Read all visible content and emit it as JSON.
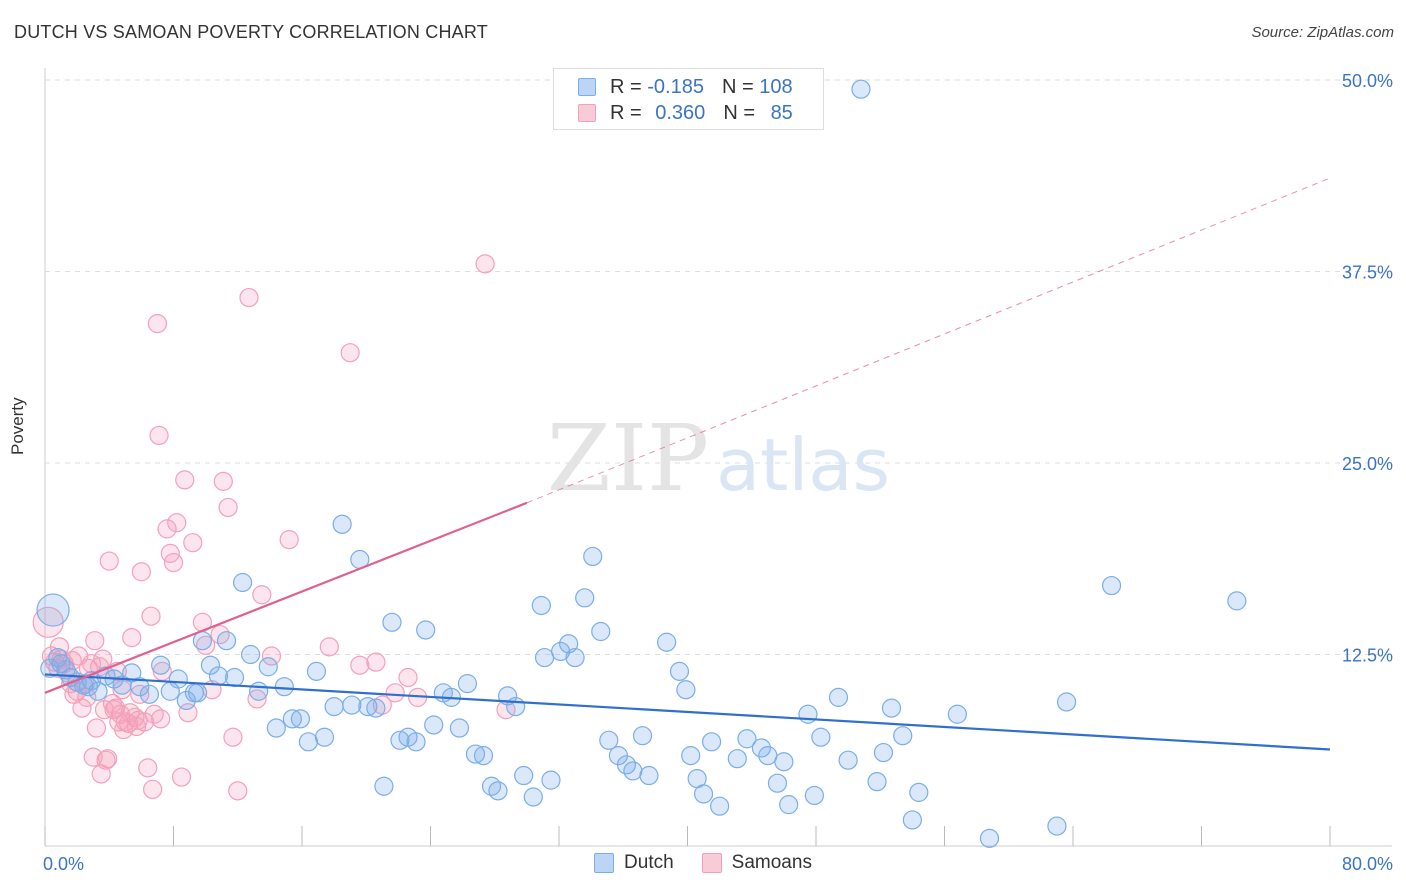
{
  "title": "DUTCH VS SAMOAN POVERTY CORRELATION CHART",
  "source": "Source: ZipAtlas.com",
  "watermark": {
    "zip": "ZIP",
    "atlas": "atlas"
  },
  "legend": {
    "rows": [
      {
        "r_label": "R =",
        "r_value": "-0.185",
        "n_label": "N =",
        "n_value": "108"
      },
      {
        "r_label": "R =",
        "r_value": "0.360",
        "n_label": "N =",
        "n_value": "85"
      }
    ]
  },
  "colors": {
    "dutch": "#7aaee8",
    "dutch_line": "#2f6fd0",
    "samoan": "#f4a0bb",
    "samoan_line": "#e06090",
    "axis_text": "#3b74c4"
  },
  "chart_data": {
    "type": "scatter",
    "title": "DUTCH VS SAMOAN POVERTY CORRELATION CHART",
    "xlabel": "",
    "ylabel": "Poverty",
    "xlim": [
      0,
      80
    ],
    "ylim": [
      0,
      52
    ],
    "x_tick_labels": [
      {
        "x": 0,
        "label": "0.0%"
      },
      {
        "x": 80,
        "label": "80.0%"
      }
    ],
    "y_tick_labels": [
      {
        "y": 12.5,
        "label": "12.5%"
      },
      {
        "y": 25,
        "label": "25.0%"
      },
      {
        "y": 37.5,
        "label": "37.5%"
      },
      {
        "y": 50,
        "label": "50.0%"
      }
    ],
    "series": [
      {
        "name": "Dutch",
        "r": -0.185,
        "n": 108,
        "trend": {
          "x0": 0,
          "y0": 11.2,
          "x1": 80,
          "y1": 6.3
        },
        "points": [
          [
            0.5,
            15.4
          ],
          [
            0.8,
            12.3
          ],
          [
            1.0,
            11.9
          ],
          [
            1.3,
            11.5
          ],
          [
            1.6,
            11.0
          ],
          [
            2.0,
            10.7
          ],
          [
            2.4,
            10.5
          ],
          [
            2.9,
            10.8
          ],
          [
            3.3,
            10.1
          ],
          [
            3.8,
            11.1
          ],
          [
            4.3,
            10.9
          ],
          [
            4.8,
            10.5
          ],
          [
            5.4,
            11.3
          ],
          [
            5.9,
            10.4
          ],
          [
            6.5,
            9.9
          ],
          [
            7.2,
            11.8
          ],
          [
            7.8,
            10.1
          ],
          [
            8.3,
            10.9
          ],
          [
            8.8,
            9.5
          ],
          [
            9.3,
            10.0
          ],
          [
            9.8,
            13.4
          ],
          [
            10.3,
            11.8
          ],
          [
            10.8,
            11.1
          ],
          [
            11.3,
            13.4
          ],
          [
            11.8,
            11.0
          ],
          [
            12.3,
            17.2
          ],
          [
            12.8,
            12.5
          ],
          [
            13.3,
            10.1
          ],
          [
            13.9,
            11.7
          ],
          [
            14.4,
            7.7
          ],
          [
            14.9,
            10.4
          ],
          [
            15.4,
            8.3
          ],
          [
            15.9,
            8.3
          ],
          [
            16.4,
            6.8
          ],
          [
            16.9,
            11.4
          ],
          [
            17.4,
            7.1
          ],
          [
            18.0,
            9.1
          ],
          [
            18.5,
            21.0
          ],
          [
            19.1,
            9.2
          ],
          [
            19.6,
            18.7
          ],
          [
            20.1,
            9.1
          ],
          [
            20.6,
            9.0
          ],
          [
            21.1,
            3.9
          ],
          [
            21.6,
            14.6
          ],
          [
            22.1,
            6.9
          ],
          [
            22.6,
            7.1
          ],
          [
            23.1,
            6.8
          ],
          [
            23.7,
            14.1
          ],
          [
            24.2,
            7.9
          ],
          [
            24.8,
            10.0
          ],
          [
            25.3,
            9.7
          ],
          [
            25.8,
            7.7
          ],
          [
            26.3,
            10.6
          ],
          [
            26.8,
            6.0
          ],
          [
            27.3,
            5.9
          ],
          [
            27.8,
            3.9
          ],
          [
            28.2,
            3.6
          ],
          [
            28.8,
            9.8
          ],
          [
            29.3,
            9.1
          ],
          [
            29.8,
            4.6
          ],
          [
            30.4,
            3.2
          ],
          [
            30.9,
            15.7
          ],
          [
            31.1,
            12.3
          ],
          [
            31.5,
            4.3
          ],
          [
            32.1,
            12.7
          ],
          [
            32.6,
            13.2
          ],
          [
            33.0,
            12.3
          ],
          [
            33.6,
            16.2
          ],
          [
            34.1,
            18.9
          ],
          [
            34.6,
            14.0
          ],
          [
            35.1,
            6.9
          ],
          [
            35.7,
            5.9
          ],
          [
            36.2,
            5.3
          ],
          [
            36.6,
            4.9
          ],
          [
            37.2,
            7.2
          ],
          [
            37.6,
            4.6
          ],
          [
            38.7,
            13.3
          ],
          [
            39.5,
            11.4
          ],
          [
            39.9,
            10.2
          ],
          [
            40.2,
            5.9
          ],
          [
            40.6,
            4.4
          ],
          [
            41.0,
            3.4
          ],
          [
            41.5,
            6.8
          ],
          [
            42.0,
            2.6
          ],
          [
            43.1,
            5.7
          ],
          [
            43.7,
            7.0
          ],
          [
            44.6,
            6.4
          ],
          [
            45.0,
            5.9
          ],
          [
            45.6,
            4.1
          ],
          [
            46.0,
            5.5
          ],
          [
            46.3,
            2.7
          ],
          [
            47.5,
            8.6
          ],
          [
            47.9,
            3.3
          ],
          [
            48.3,
            7.1
          ],
          [
            49.4,
            9.7
          ],
          [
            50.0,
            5.6
          ],
          [
            50.8,
            49.4
          ],
          [
            51.8,
            4.2
          ],
          [
            52.2,
            6.1
          ],
          [
            52.7,
            9.0
          ],
          [
            53.4,
            7.2
          ],
          [
            54.0,
            1.7
          ],
          [
            54.4,
            3.5
          ],
          [
            56.8,
            8.6
          ],
          [
            58.8,
            0.5
          ],
          [
            63.0,
            1.3
          ],
          [
            63.6,
            9.4
          ],
          [
            66.4,
            17.0
          ],
          [
            74.2,
            16.0
          ],
          [
            0.3,
            11.6
          ],
          [
            2.7,
            10.4
          ],
          [
            9.5,
            10.0
          ]
        ]
      },
      {
        "name": "Samoans",
        "r": 0.36,
        "n": 85,
        "trend_solid": {
          "x0": 0,
          "y0": 10.0,
          "x1": 30,
          "y1": 22.4
        },
        "trend_dashed": {
          "x0": 30,
          "y0": 22.4,
          "x1": 80,
          "y1": 43.6
        },
        "points": [
          [
            0.2,
            14.6
          ],
          [
            0.4,
            12.4
          ],
          [
            0.6,
            12.0
          ],
          [
            0.8,
            11.6
          ],
          [
            1.0,
            12.2
          ],
          [
            1.2,
            11.9
          ],
          [
            1.4,
            11.3
          ],
          [
            1.6,
            10.6
          ],
          [
            1.8,
            9.9
          ],
          [
            2.0,
            10.1
          ],
          [
            2.1,
            12.4
          ],
          [
            2.3,
            9.0
          ],
          [
            2.5,
            10.6
          ],
          [
            2.7,
            11.6
          ],
          [
            2.9,
            11.9
          ],
          [
            3.0,
            5.8
          ],
          [
            3.1,
            13.4
          ],
          [
            3.2,
            7.7
          ],
          [
            3.4,
            11.7
          ],
          [
            3.5,
            4.7
          ],
          [
            3.6,
            12.2
          ],
          [
            3.7,
            8.9
          ],
          [
            3.8,
            5.6
          ],
          [
            3.9,
            5.7
          ],
          [
            4.0,
            18.6
          ],
          [
            4.2,
            9.3
          ],
          [
            4.3,
            8.9
          ],
          [
            4.5,
            11.4
          ],
          [
            4.6,
            8.1
          ],
          [
            4.7,
            8.6
          ],
          [
            4.8,
            10.2
          ],
          [
            4.9,
            7.6
          ],
          [
            5.0,
            8.1
          ],
          [
            5.2,
            8.0
          ],
          [
            5.3,
            8.7
          ],
          [
            5.4,
            13.6
          ],
          [
            5.6,
            8.4
          ],
          [
            5.8,
            8.2
          ],
          [
            5.9,
            9.9
          ],
          [
            6.0,
            17.9
          ],
          [
            6.2,
            8.1
          ],
          [
            6.4,
            5.1
          ],
          [
            6.6,
            15.0
          ],
          [
            6.7,
            3.7
          ],
          [
            6.8,
            8.6
          ],
          [
            7.0,
            34.1
          ],
          [
            7.1,
            26.8
          ],
          [
            7.2,
            8.3
          ],
          [
            7.3,
            11.4
          ],
          [
            7.6,
            20.7
          ],
          [
            7.8,
            19.1
          ],
          [
            8.0,
            18.5
          ],
          [
            8.2,
            21.1
          ],
          [
            8.5,
            4.5
          ],
          [
            8.7,
            23.9
          ],
          [
            8.9,
            8.7
          ],
          [
            9.2,
            19.8
          ],
          [
            9.8,
            14.6
          ],
          [
            10.0,
            13.1
          ],
          [
            10.4,
            10.2
          ],
          [
            10.9,
            13.8
          ],
          [
            11.1,
            23.8
          ],
          [
            11.4,
            22.1
          ],
          [
            11.7,
            7.1
          ],
          [
            12.0,
            3.6
          ],
          [
            12.7,
            35.8
          ],
          [
            13.2,
            9.6
          ],
          [
            13.5,
            16.4
          ],
          [
            14.1,
            12.4
          ],
          [
            15.2,
            20.0
          ],
          [
            17.7,
            13.0
          ],
          [
            19.0,
            32.2
          ],
          [
            19.6,
            11.8
          ],
          [
            20.6,
            12.0
          ],
          [
            21.0,
            9.2
          ],
          [
            21.8,
            10.0
          ],
          [
            22.6,
            11.0
          ],
          [
            23.2,
            9.7
          ],
          [
            27.4,
            38.0
          ],
          [
            28.7,
            8.9
          ],
          [
            0.9,
            13.0
          ],
          [
            1.7,
            12.1
          ],
          [
            2.6,
            9.7
          ],
          [
            4.4,
            9.0
          ],
          [
            5.7,
            7.8
          ]
        ]
      }
    ],
    "legend_position": "top-center"
  },
  "bottom_legend": [
    {
      "label": "Dutch"
    },
    {
      "label": "Samoans"
    }
  ]
}
